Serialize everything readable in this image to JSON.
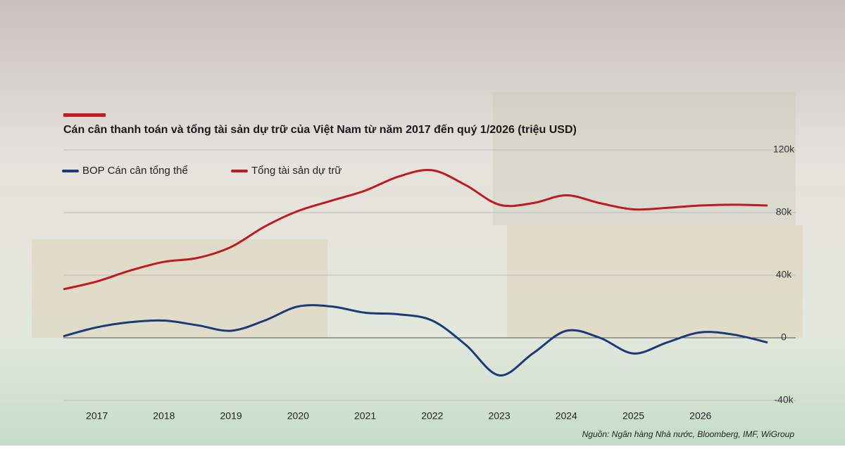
{
  "chart_data": {
    "type": "line",
    "title": "Cán cân thanh toán và tổng tài sản dự trữ của Việt Nam từ năm 2017 đến quý 1/2026 (triệu USD)",
    "source": "Nguồn: Ngân hàng Nhà nước, Bloomberg, IMF, WiGroup",
    "categories": [
      null,
      "2017",
      null,
      "2018",
      null,
      "2019",
      null,
      "2020",
      null,
      "2021",
      null,
      "2022",
      null,
      "2023",
      null,
      "2024",
      null,
      "2025",
      null,
      "2026",
      null,
      null
    ],
    "series": [
      {
        "name": "BOP Cán cân tổng thể",
        "color": "#1b3a78",
        "values": [
          1000,
          6700,
          10000,
          11000,
          8000,
          4500,
          11000,
          20000,
          20000,
          16000,
          15000,
          11000,
          -4500,
          -24000,
          -10000,
          4500,
          0,
          -10000,
          -3000,
          3500,
          2000,
          -3000
        ]
      },
      {
        "name": "Tổng tài sản dự trữ",
        "color": "#bf1a1f",
        "values": [
          31000,
          36000,
          43000,
          48500,
          51000,
          58000,
          71000,
          81000,
          87600,
          94000,
          103000,
          107000,
          97500,
          85000,
          86000,
          91000,
          86000,
          82000,
          83000,
          84500,
          85000,
          84500
        ]
      }
    ],
    "ylim": [
      -40000,
      120000
    ],
    "yticks": [
      {
        "value": -40000,
        "label": "-40k"
      },
      0,
      {
        "value": 40000,
        "label": "40k"
      },
      {
        "value": 80000,
        "label": "80k"
      },
      {
        "value": 120000,
        "label": "120k"
      }
    ],
    "grid": true
  }
}
